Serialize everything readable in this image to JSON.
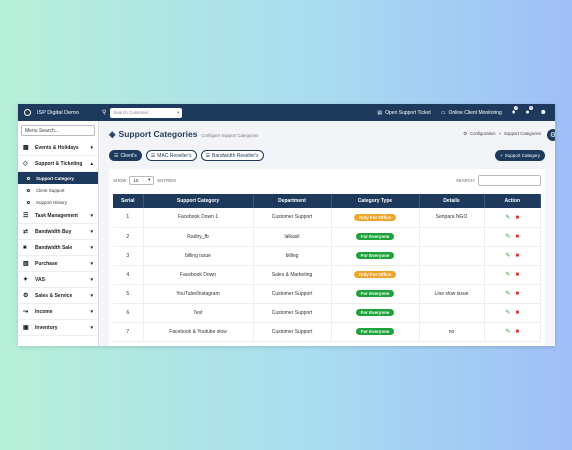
{
  "topbar": {
    "brand": "ISP Digital Demo",
    "search_placeholder": "Search Customer",
    "open_ticket": "Open Support Ticket",
    "online_monitoring": "Online Client Monitoring",
    "notif_count": "0",
    "alert_count": "0"
  },
  "sidebar": {
    "search_placeholder": "Menu Search...",
    "items": [
      {
        "label": "Events & Holidays"
      },
      {
        "label": "Support & Ticketing"
      }
    ],
    "sub_items": [
      {
        "label": "Support Category"
      },
      {
        "label": "Client Support"
      },
      {
        "label": "Support History"
      }
    ],
    "items2": [
      {
        "label": "Task Management"
      },
      {
        "label": "Bandwidth Buy"
      },
      {
        "label": "Bandwidth Sale"
      },
      {
        "label": "Purchase"
      },
      {
        "label": "VAS"
      },
      {
        "label": "Sales & Service"
      },
      {
        "label": "Income"
      },
      {
        "label": "Inventory"
      }
    ]
  },
  "page": {
    "title": "Support Categories",
    "subtitle": "Configure Support Categories",
    "crumb_root": "Configuration",
    "crumb_sep": "»",
    "crumb_current": "Support Categories"
  },
  "filters": {
    "client": "Client's",
    "mac": "MAC Reseller's",
    "bandwidth": "Bandwidth Reseller's",
    "add": "Support Category"
  },
  "table_ctrl": {
    "show": "SHOW",
    "entries_value": "10",
    "entries": "ENTRIES",
    "search": "SEARCH:"
  },
  "table": {
    "headers": [
      "Serial",
      "Support Category",
      "Department",
      "Category Type",
      "Details",
      "Action"
    ],
    "rows": [
      {
        "serial": "1",
        "category": "Facebook Down 1",
        "department": "Customer Support",
        "type": "Only For Office",
        "type_color": "orange",
        "details": "Senpara NGO"
      },
      {
        "serial": "2",
        "category": "Radiry_fb",
        "department": "lalkasil",
        "type": "For Everyone",
        "type_color": "green",
        "details": ""
      },
      {
        "serial": "3",
        "category": "billing issue",
        "department": "billing",
        "type": "For Everyone",
        "type_color": "green",
        "details": ""
      },
      {
        "serial": "4",
        "category": "Facebook Down",
        "department": "Sales & Marketing",
        "type": "Only For Office",
        "type_color": "orange",
        "details": ""
      },
      {
        "serial": "5",
        "category": "YouTube/Instagram",
        "department": "Customer Support",
        "type": "For Everyone",
        "type_color": "green",
        "details": "Line slow issue"
      },
      {
        "serial": "6",
        "category": "Test",
        "department": "Customer Support",
        "type": "For Everyone",
        "type_color": "green",
        "details": ""
      },
      {
        "serial": "7",
        "category": "Facebook & Youtube slow",
        "department": "Customer Support",
        "type": "For Everyone",
        "type_color": "green",
        "details": "no"
      }
    ]
  },
  "colors": {
    "primary": "#1d3a5c",
    "green": "#1ea23a",
    "orange": "#f0a52e",
    "delete": "#d9342b"
  }
}
